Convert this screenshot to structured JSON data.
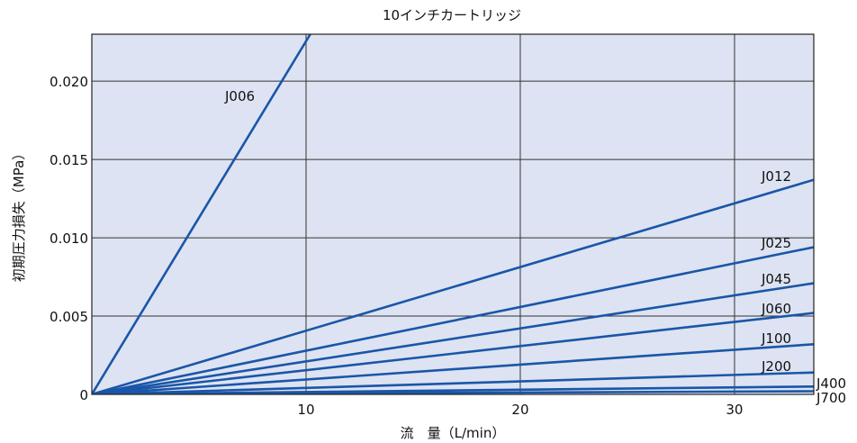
{
  "chart_data": {
    "type": "line",
    "title": "10インチカートリッジ",
    "xlabel": "流　量（L/min）",
    "ylabel": "初期圧力損失（MPa）",
    "xlim": [
      0,
      33.7
    ],
    "ylim": [
      0,
      0.023
    ],
    "x_ticks": [
      {
        "value": 10,
        "label": "10"
      },
      {
        "value": 20,
        "label": "20"
      },
      {
        "value": 30,
        "label": "30"
      }
    ],
    "y_ticks": [
      {
        "value": 0,
        "label": "0"
      },
      {
        "value": 0.005,
        "label": "0.005"
      },
      {
        "value": 0.01,
        "label": "0.010"
      },
      {
        "value": 0.015,
        "label": "0.015"
      },
      {
        "value": 0.02,
        "label": "0.020"
      }
    ],
    "grid": true,
    "colors": {
      "plot_background": "#dde3f2",
      "series": "#1a56a8",
      "grid": "#333333"
    },
    "series": [
      {
        "name": "J006",
        "x": [
          0,
          10.2
        ],
        "y": [
          0,
          0.023
        ]
      },
      {
        "name": "J012",
        "x": [
          0,
          33.7
        ],
        "y": [
          0,
          0.0137
        ]
      },
      {
        "name": "J025",
        "x": [
          0,
          33.7
        ],
        "y": [
          0,
          0.0094
        ]
      },
      {
        "name": "J045",
        "x": [
          0,
          33.7
        ],
        "y": [
          0,
          0.0071
        ]
      },
      {
        "name": "J060",
        "x": [
          0,
          33.7
        ],
        "y": [
          0,
          0.0052
        ]
      },
      {
        "name": "J100",
        "x": [
          0,
          33.7
        ],
        "y": [
          0,
          0.0032
        ]
      },
      {
        "name": "J200",
        "x": [
          0,
          33.7
        ],
        "y": [
          0,
          0.0014
        ]
      },
      {
        "name": "J400",
        "x": [
          0,
          33.7
        ],
        "y": [
          0,
          0.0005
        ]
      },
      {
        "name": "J700",
        "x": [
          0,
          33.7
        ],
        "y": [
          0,
          0.0002
        ]
      }
    ]
  }
}
